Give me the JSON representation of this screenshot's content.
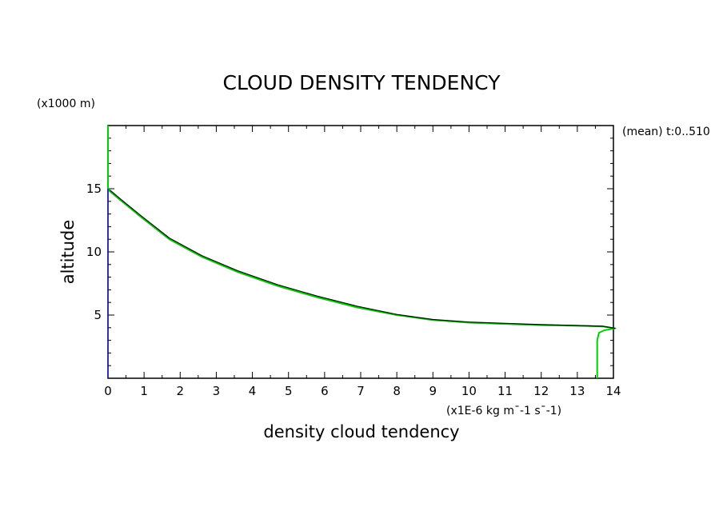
{
  "chart_data": {
    "type": "line",
    "title": "CLOUD DENSITY TENDENCY",
    "xlabel": "density cloud tendency",
    "xunits": "(x1E-6 kg m¯-1 s¯-1)",
    "ylabel": "altitude",
    "yunits": "(x1000 m)",
    "annotation": "(mean) t:0..510",
    "xlim": [
      0,
      14
    ],
    "ylim": [
      0,
      20
    ],
    "xticks": [
      "0",
      "1",
      "2",
      "3",
      "4",
      "5",
      "6",
      "7",
      "8",
      "9",
      "10",
      "11",
      "12",
      "13",
      "14"
    ],
    "yticks": [
      "5",
      "10",
      "15"
    ],
    "grid": false,
    "series": [
      {
        "color": "#00d000",
        "x": [
          0,
          0,
          0.05,
          0.3,
          0.9,
          1.7,
          2.6,
          3.6,
          4.7,
          5.8,
          6.9,
          8.0,
          9.0,
          10.0,
          11.0,
          12.0,
          13.0,
          13.7,
          14.05,
          13.75,
          13.6,
          13.55,
          13.55
        ],
        "y": [
          20,
          15.0,
          14.8,
          14.2,
          12.8,
          11.0,
          9.6,
          8.4,
          7.3,
          6.4,
          5.6,
          5.0,
          4.6,
          4.4,
          4.3,
          4.2,
          4.15,
          4.1,
          3.95,
          3.8,
          3.6,
          3.0,
          0
        ]
      },
      {
        "color": "#000000",
        "x": [
          0.05,
          0.3,
          0.9,
          1.7,
          2.6,
          3.6,
          4.7,
          5.8,
          6.9,
          8.0,
          9.0,
          10.0,
          11.0,
          12.0,
          13.0,
          13.7,
          14.05
        ],
        "y": [
          14.9,
          14.3,
          12.9,
          11.1,
          9.7,
          8.5,
          7.4,
          6.5,
          5.7,
          5.05,
          4.65,
          4.45,
          4.35,
          4.25,
          4.18,
          4.12,
          3.95
        ]
      },
      {
        "color": "#0000cc",
        "x": [
          0,
          0
        ],
        "y": [
          0,
          15
        ]
      }
    ]
  }
}
